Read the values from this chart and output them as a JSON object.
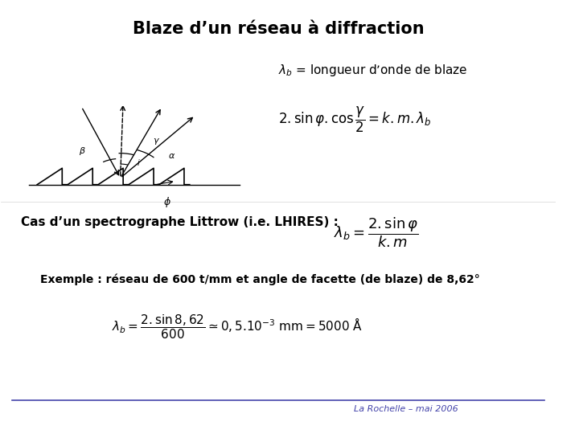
{
  "title": "Blaze d’un réseau à diffraction",
  "title_fontsize": 15,
  "bg_color": "#ffffff",
  "lambda_def": "$\\lambda_b$ = longueur d’onde de blaze",
  "formula1": "$2 . \\sin \\varphi . \\cos \\dfrac{\\gamma}{2} = k . m . \\lambda_b$",
  "cas_text": "Cas d’un spectrographe Littrow (i.e. LHIRES) :",
  "formula2": "$\\lambda_b = \\dfrac{2 . \\sin \\varphi}{k . m}$",
  "exemple_text": "Exemple : réseau de 600 t/mm et angle de facette (de blaze) de 8,62°",
  "formula3": "$\\lambda_b = \\dfrac{2 . \\sin 8,62}{600} \\simeq 0,5 . 10^{-3} \\text{ mm} = 5000 \\text{ Å}$",
  "footer": "La Rochelle – mai 2006",
  "footer_color": "#4444aa",
  "line_color": "#4444aa",
  "text_color": "#000000"
}
